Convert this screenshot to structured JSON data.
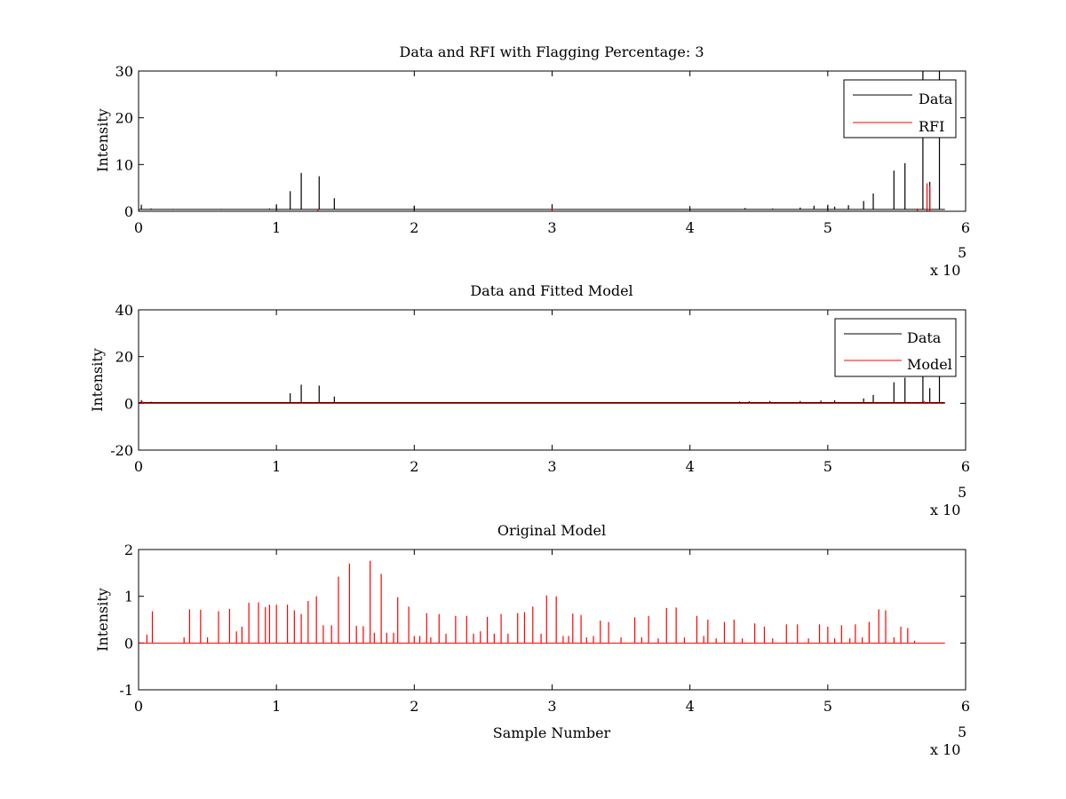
{
  "figure": {
    "colors": {
      "data": "#000000",
      "rfi": "#ff0000",
      "model": "#ff0000",
      "background": "#ffffff",
      "axes": "#000000"
    }
  },
  "chart_data": [
    {
      "type": "line",
      "title": "Data and RFI with Flagging Percentage: 3",
      "xlabel": "",
      "ylabel": "Intensity",
      "xlim": [
        0,
        600000
      ],
      "ylim": [
        0,
        30
      ],
      "xticks": [
        0,
        1,
        2,
        3,
        4,
        5,
        6
      ],
      "yticks": [
        0,
        10,
        20,
        30
      ],
      "x_multiplier": "x 10",
      "x_multiplier_exp": "5",
      "grid": false,
      "legend_position": "top-right",
      "legend": [
        "Data",
        "RFI"
      ],
      "series": [
        {
          "name": "Data",
          "color": "#000000",
          "baseline": 0.4,
          "spikes": [
            [
              2000,
              1.4
            ],
            [
              9000,
              0.6
            ],
            [
              25000,
              0.5
            ],
            [
              60000,
              0.5
            ],
            [
              95000,
              0.6
            ],
            [
              100000,
              1.5
            ],
            [
              110000,
              4.3
            ],
            [
              118000,
              8.2
            ],
            [
              131000,
              7.5
            ],
            [
              142000,
              2.8
            ],
            [
              200000,
              1.2
            ],
            [
              300000,
              1.5
            ],
            [
              400000,
              0.6
            ],
            [
              440000,
              0.7
            ],
            [
              460000,
              0.6
            ],
            [
              480000,
              0.8
            ],
            [
              490000,
              1.2
            ],
            [
              500000,
              1.4
            ],
            [
              505000,
              1.0
            ],
            [
              515000,
              1.3
            ],
            [
              526000,
              2.2
            ],
            [
              533000,
              3.8
            ],
            [
              548000,
              8.7
            ],
            [
              556000,
              10.3
            ],
            [
              569000,
              30.0
            ],
            [
              574000,
              6.3
            ],
            [
              581000,
              30.0
            ]
          ]
        },
        {
          "name": "RFI",
          "color": "#ff0000",
          "baseline": 0.0,
          "spikes": [
            [
              130000,
              0.5
            ],
            [
              300000,
              0.6
            ],
            [
              565000,
              0.6
            ],
            [
              572000,
              6.0
            ],
            [
              574000,
              5.5
            ]
          ]
        }
      ]
    },
    {
      "type": "line",
      "title": "Data and Fitted Model",
      "xlabel": "",
      "ylabel": "Intensity",
      "xlim": [
        0,
        600000
      ],
      "ylim": [
        -20,
        40
      ],
      "xticks": [
        0,
        1,
        2,
        3,
        4,
        5,
        6
      ],
      "yticks": [
        -20,
        0,
        20,
        40
      ],
      "x_multiplier": "x 10",
      "x_multiplier_exp": "5",
      "grid": false,
      "legend_position": "top-right",
      "legend": [
        "Data",
        "Model"
      ],
      "series": [
        {
          "name": "Data",
          "color": "#000000",
          "baseline": 0.3,
          "spikes": [
            [
              2000,
              1.4
            ],
            [
              9000,
              0.7
            ],
            [
              110000,
              4.3
            ],
            [
              118000,
              8.0
            ],
            [
              131000,
              7.6
            ],
            [
              142000,
              2.9
            ],
            [
              436000,
              0.8
            ],
            [
              443000,
              0.9
            ],
            [
              458000,
              1.0
            ],
            [
              480000,
              1.0
            ],
            [
              495000,
              1.2
            ],
            [
              505000,
              1.3
            ],
            [
              526000,
              2.1
            ],
            [
              533000,
              3.6
            ],
            [
              548000,
              9.0
            ],
            [
              556000,
              11.0
            ],
            [
              569000,
              12.0
            ],
            [
              574000,
              6.5
            ],
            [
              581000,
              12.0
            ]
          ]
        },
        {
          "name": "Model",
          "color": "#ff0000",
          "baseline": 0.0,
          "spikes": [
            [
              3000,
              0.8
            ],
            [
              570000,
              1.0
            ]
          ]
        }
      ]
    },
    {
      "type": "line",
      "title": "Original Model",
      "xlabel": "Sample Number",
      "ylabel": "Intensity",
      "xlim": [
        0,
        600000
      ],
      "ylim": [
        -1,
        2
      ],
      "xticks": [
        0,
        1,
        2,
        3,
        4,
        5,
        6
      ],
      "yticks": [
        -1,
        0,
        1,
        2
      ],
      "x_multiplier": "x 10",
      "x_multiplier_exp": "5",
      "grid": false,
      "legend_position": "none",
      "legend": [],
      "series": [
        {
          "name": "",
          "color": "#ff0000",
          "baseline": 0.0,
          "spikes": [
            [
              6000,
              0.18
            ],
            [
              10000,
              0.68
            ],
            [
              33000,
              0.12
            ],
            [
              37000,
              0.72
            ],
            [
              45000,
              0.71
            ],
            [
              50000,
              0.12
            ],
            [
              58000,
              0.68
            ],
            [
              66000,
              0.73
            ],
            [
              71000,
              0.25
            ],
            [
              75000,
              0.35
            ],
            [
              80000,
              0.86
            ],
            [
              87000,
              0.87
            ],
            [
              92000,
              0.77
            ],
            [
              95000,
              0.82
            ],
            [
              100000,
              0.82
            ],
            [
              108000,
              0.82
            ],
            [
              113000,
              0.7
            ],
            [
              118000,
              0.62
            ],
            [
              123000,
              0.9
            ],
            [
              129000,
              1.0
            ],
            [
              134000,
              0.38
            ],
            [
              140000,
              0.38
            ],
            [
              145000,
              1.42
            ],
            [
              153000,
              1.7
            ],
            [
              158000,
              0.37
            ],
            [
              163000,
              0.36
            ],
            [
              168000,
              1.76
            ],
            [
              171000,
              0.22
            ],
            [
              176000,
              1.48
            ],
            [
              180000,
              0.22
            ],
            [
              185000,
              0.22
            ],
            [
              188000,
              0.98
            ],
            [
              196000,
              0.78
            ],
            [
              200000,
              0.15
            ],
            [
              204000,
              0.15
            ],
            [
              209000,
              0.64
            ],
            [
              212000,
              0.12
            ],
            [
              218000,
              0.62
            ],
            [
              223000,
              0.2
            ],
            [
              230000,
              0.58
            ],
            [
              238000,
              0.58
            ],
            [
              243000,
              0.2
            ],
            [
              248000,
              0.25
            ],
            [
              253000,
              0.56
            ],
            [
              258000,
              0.2
            ],
            [
              263000,
              0.62
            ],
            [
              268000,
              0.2
            ],
            [
              275000,
              0.64
            ],
            [
              280000,
              0.66
            ],
            [
              286000,
              0.78
            ],
            [
              292000,
              0.2
            ],
            [
              296000,
              1.02
            ],
            [
              303000,
              1.0
            ],
            [
              308000,
              0.15
            ],
            [
              312000,
              0.15
            ],
            [
              315000,
              0.63
            ],
            [
              321000,
              0.6
            ],
            [
              325000,
              0.12
            ],
            [
              330000,
              0.15
            ],
            [
              335000,
              0.48
            ],
            [
              341000,
              0.45
            ],
            [
              350000,
              0.12
            ],
            [
              360000,
              0.55
            ],
            [
              365000,
              0.12
            ],
            [
              370000,
              0.58
            ],
            [
              377000,
              0.1
            ],
            [
              383000,
              0.75
            ],
            [
              390000,
              0.76
            ],
            [
              396000,
              0.12
            ],
            [
              405000,
              0.58
            ],
            [
              410000,
              0.15
            ],
            [
              413000,
              0.5
            ],
            [
              419000,
              0.1
            ],
            [
              425000,
              0.45
            ],
            [
              432000,
              0.5
            ],
            [
              438000,
              0.1
            ],
            [
              447000,
              0.42
            ],
            [
              454000,
              0.35
            ],
            [
              460000,
              0.1
            ],
            [
              470000,
              0.4
            ],
            [
              478000,
              0.4
            ],
            [
              486000,
              0.1
            ],
            [
              494000,
              0.4
            ],
            [
              500000,
              0.35
            ],
            [
              505000,
              0.1
            ],
            [
              510000,
              0.38
            ],
            [
              516000,
              0.1
            ],
            [
              520000,
              0.4
            ],
            [
              525000,
              0.12
            ],
            [
              530000,
              0.45
            ],
            [
              537000,
              0.72
            ],
            [
              542000,
              0.7
            ],
            [
              548000,
              0.12
            ],
            [
              553000,
              0.35
            ],
            [
              558000,
              0.32
            ],
            [
              563000,
              0.05
            ]
          ]
        }
      ]
    }
  ]
}
